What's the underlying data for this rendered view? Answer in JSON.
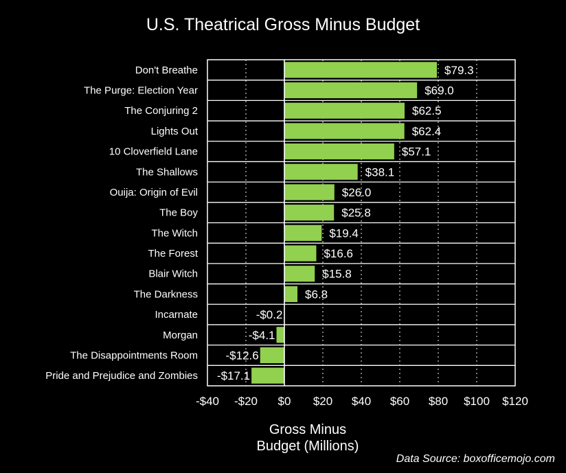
{
  "chart_data": {
    "type": "bar",
    "orientation": "horizontal",
    "title": "U.S. Theatrical Gross Minus Budget",
    "xlabel": "Gross Minus Budget (Millions)",
    "categories": [
      "Don't Breathe",
      "The Purge: Election Year",
      "The Conjuring 2",
      "Lights Out",
      "10 Cloverfield Lane",
      "The Shallows",
      "Ouija: Origin of Evil",
      "The Boy",
      "The Witch",
      "The Forest",
      "Blair Witch",
      "The Darkness",
      "Incarnate",
      "Morgan",
      "The Disappointments Room",
      "Pride and Prejudice and Zombies"
    ],
    "values": [
      79.3,
      69.0,
      62.5,
      62.4,
      57.1,
      38.1,
      26.0,
      25.8,
      19.4,
      16.6,
      15.8,
      6.8,
      -0.2,
      -4.1,
      -12.6,
      -17.1
    ],
    "value_labels": [
      "$79.3",
      "$69.0",
      "$62.5",
      "$62.4",
      "$57.1",
      "$38.1",
      "$26.0",
      "$25.8",
      "$19.4",
      "$16.6",
      "$15.8",
      "$6.8",
      "-$0.2",
      "-$4.1",
      "-$12.6",
      "-$17.1"
    ],
    "xlim": [
      -40,
      120
    ],
    "xticks": [
      -40,
      -20,
      0,
      20,
      40,
      60,
      80,
      100,
      120
    ],
    "xtick_labels": [
      "-$40",
      "-$20",
      "$0",
      "$20",
      "$40",
      "$60",
      "$80",
      "$100",
      "$120"
    ],
    "grid": true,
    "bar_color": "#92d050",
    "background_color": "#000000",
    "source": "Data Source: boxofficemojo.com"
  }
}
